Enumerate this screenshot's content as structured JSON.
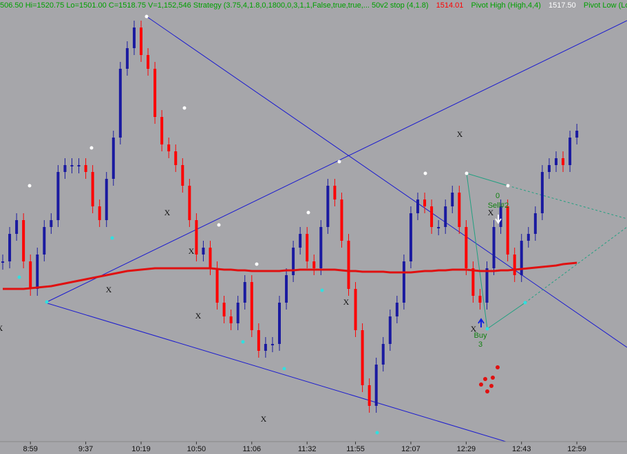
{
  "header": {
    "items": [
      {
        "text": "506.50  Hi=1520.75  Lo=1501.00  C=1518.75  V=1,152,546   Strategy (3.75,4,1.8,0,1800,0,3,1,1,False,true,true,...   50v2 stop (4,1.8)",
        "color": "#00a000"
      },
      {
        "text": "1514.01",
        "color": "#ff0000"
      },
      {
        "text": "Pivot High (High,4,4)",
        "color": "#00a000"
      },
      {
        "text": "1517.50",
        "color": "#ffffff"
      },
      {
        "text": "Pivot Low (Low",
        "color": "#00a000"
      }
    ]
  },
  "annotations": [
    "X",
    "X",
    "X",
    "X",
    "X",
    "X",
    "X",
    "X",
    "X",
    "X",
    "0",
    "Sell#2",
    "Buy",
    "3"
  ],
  "chart_data": {
    "type": "bar",
    "categories": [
      null,
      null,
      null,
      null,
      "8:59",
      null,
      null,
      null,
      null,
      null,
      null,
      null,
      "9:37",
      null,
      null,
      null,
      null,
      null,
      null,
      null,
      "10:19",
      null,
      null,
      null,
      null,
      null,
      null,
      null,
      "10:50",
      null,
      null,
      null,
      null,
      null,
      null,
      null,
      "11:06",
      null,
      null,
      null,
      null,
      null,
      null,
      null,
      "11:32",
      null,
      null,
      null,
      null,
      null,
      null,
      "11:55",
      null,
      null,
      null,
      null,
      null,
      null,
      null,
      "12:07",
      null,
      null,
      null,
      null,
      null,
      null,
      null,
      "12:29",
      null,
      null,
      null,
      null,
      null,
      null,
      null,
      "12:43",
      null,
      null,
      null,
      null,
      null,
      null,
      null,
      "12:59"
    ],
    "values": [
      1511,
      1513,
      1514,
      1511,
      1509,
      1511.5,
      1513.5,
      1514,
      1517.5,
      1518,
      1518,
      1518,
      1517.5,
      1515,
      1514,
      1517,
      1520,
      1525,
      1526.5,
      1528,
      1526,
      1525,
      1521.5,
      1519.5,
      1519,
      1518,
      1516.5,
      1514,
      1511.5,
      1512,
      1510.5,
      1508,
      1507,
      1506.5,
      1508,
      1509.5,
      1506,
      1504.5,
      1505,
      1505,
      1508,
      1510,
      1512,
      1513,
      1511,
      1510.5,
      1513.5,
      1516.5,
      1515.5,
      1512.5,
      1509,
      1506,
      1502,
      1500.5,
      1503.5,
      1505,
      1507,
      1508,
      1511,
      1514.5,
      1515.5,
      1515,
      1513.5,
      1513.5,
      1515,
      1516,
      1513.5,
      1510.5,
      1508.5,
      1508,
      1510.5,
      1513.5,
      1515,
      1511.5,
      1510,
      1512.5,
      1513,
      1514.5,
      1517.5,
      1518,
      1518.5,
      1518,
      1520,
      1520.5
    ],
    "ma_values": [
      1509,
      1509,
      1509,
      1509,
      1509.05,
      1509.1,
      1509.15,
      1509.2,
      1509.3,
      1509.4,
      1509.5,
      1509.6,
      1509.7,
      1509.8,
      1509.9,
      1510,
      1510.1,
      1510.2,
      1510.3,
      1510.35,
      1510.4,
      1510.45,
      1510.5,
      1510.5,
      1510.5,
      1510.5,
      1510.5,
      1510.5,
      1510.5,
      1510.5,
      1510.5,
      1510.45,
      1510.4,
      1510.4,
      1510.35,
      1510.35,
      1510.3,
      1510.3,
      1510.3,
      1510.3,
      1510.3,
      1510.35,
      1510.35,
      1510.4,
      1510.4,
      1510.4,
      1510.4,
      1510.4,
      1510.4,
      1510.35,
      1510.3,
      1510.3,
      1510.25,
      1510.25,
      1510.25,
      1510.25,
      1510.2,
      1510.2,
      1510.2,
      1510.2,
      1510.25,
      1510.3,
      1510.3,
      1510.35,
      1510.35,
      1510.4,
      1510.4,
      1510.4,
      1510.35,
      1510.3,
      1510.3,
      1510.3,
      1510.35,
      1510.35,
      1510.4,
      1510.45,
      1510.5,
      1510.55,
      1510.6,
      1510.65,
      1510.7,
      1510.8,
      1510.85,
      1510.9
    ],
    "up_color": "#1a1aa0",
    "down_color": "#ff0000",
    "ma_color": "#e01010",
    "ylim": [
      1497,
      1530
    ]
  }
}
